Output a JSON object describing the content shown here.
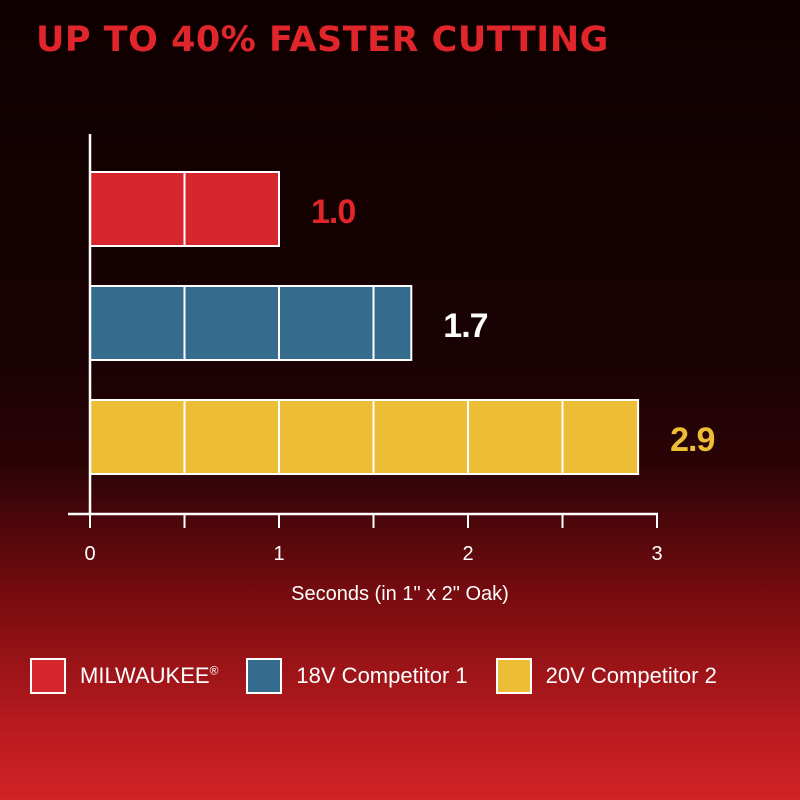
{
  "colors": {
    "accent": "#e0252b",
    "milwaukee": "#d8262e",
    "competitor1": "#356b8d",
    "competitor2": "#ecbd35",
    "axis": "#ffffff"
  },
  "chart_data": {
    "type": "bar",
    "orientation": "horizontal",
    "title": "UP TO 40% FASTER CUTTING",
    "xlabel": "Seconds (in 1\" x 2\" Oak)",
    "ylabel": "",
    "xlim": [
      0,
      3
    ],
    "x_ticks": [
      "0",
      "1",
      "2",
      "3"
    ],
    "grid": false,
    "legend_position": "bottom",
    "series": [
      {
        "name": "MILWAUKEE",
        "legend_sup": "®",
        "value": 1.0,
        "label": "1.0",
        "color": "#d8262e",
        "label_color": "#e0252b"
      },
      {
        "name": "18V Competitor 1",
        "value": 1.7,
        "label": "1.7",
        "color": "#356b8d",
        "label_color": "#ffffff"
      },
      {
        "name": "20V Competitor 2",
        "value": 2.9,
        "label": "2.9",
        "color": "#ecbd35",
        "label_color": "#ecbd35"
      }
    ]
  }
}
